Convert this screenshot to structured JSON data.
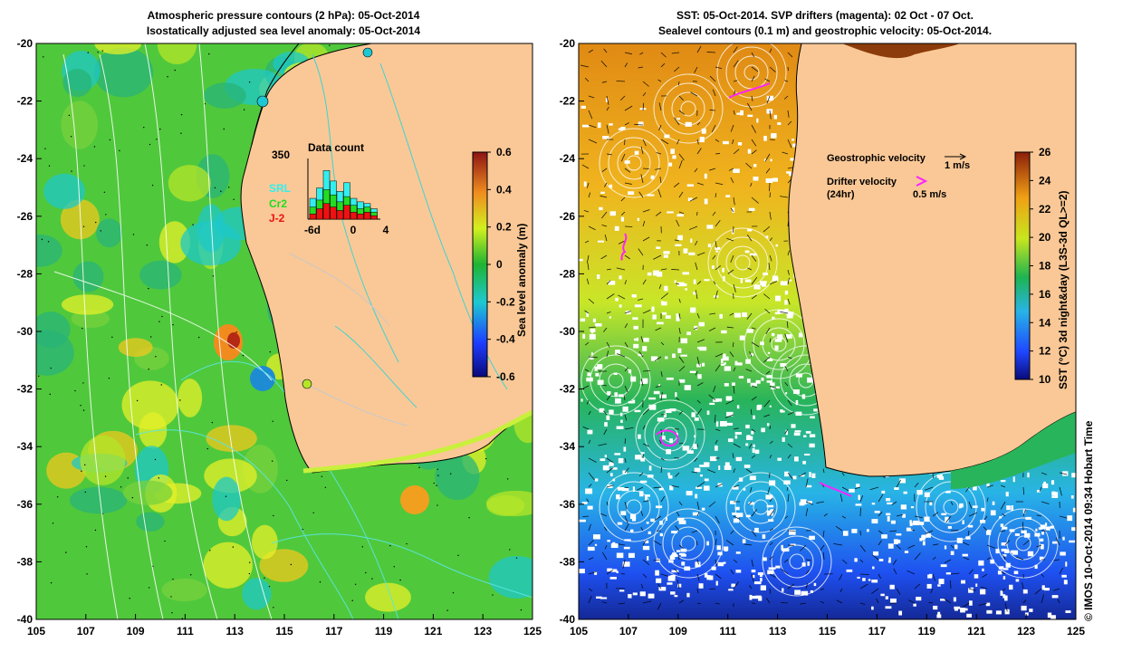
{
  "left_panel": {
    "title_line1": "Atmospheric pressure contours (2 hPa): 05-Oct-2014",
    "title_line2": "Isostatically adjusted sea level anomaly: 05-Oct-2014",
    "x_ticks": [
      "105",
      "107",
      "109",
      "111",
      "113",
      "115",
      "117",
      "119",
      "121",
      "123",
      "125"
    ],
    "y_ticks": [
      "-20",
      "-22",
      "-24",
      "-26",
      "-28",
      "-30",
      "-32",
      "-34",
      "-36",
      "-38",
      "-40"
    ],
    "colorbar": {
      "label": "Sea level anomaly (m)",
      "ticks": [
        "0.6",
        "0.4",
        "0.2",
        "0",
        "-0.2",
        "-0.4",
        "-0.6"
      ],
      "min": -0.6,
      "max": 0.6
    },
    "inset": {
      "title": "Data count",
      "ymax_label": "350",
      "x_ticks": [
        "-6d",
        "0",
        "4"
      ],
      "legend": [
        {
          "label": "SRL",
          "color": "#33eeee"
        },
        {
          "label": "Cr2",
          "color": "#22dd22"
        },
        {
          "label": "J-2",
          "color": "#ee1111"
        }
      ],
      "series": {
        "days": [
          -6,
          -5,
          -4,
          -3,
          -2,
          -1,
          0,
          1,
          2,
          3
        ],
        "SRL": [
          120,
          180,
          280,
          220,
          160,
          210,
          120,
          100,
          90,
          60
        ],
        "Cr2": [
          70,
          110,
          170,
          140,
          100,
          130,
          80,
          60,
          70,
          40
        ],
        "J-2": [
          30,
          60,
          90,
          70,
          50,
          80,
          40,
          30,
          40,
          20
        ]
      }
    }
  },
  "right_panel": {
    "title_line1": "SST: 05-Oct-2014. SVP drifters (magenta): 02 Oct - 07 Oct.",
    "title_line2": "Sealevel contours (0.1 m) and geostrophic velocity: 05-Oct-2014.",
    "x_ticks": [
      "105",
      "107",
      "109",
      "111",
      "113",
      "115",
      "117",
      "119",
      "121",
      "123",
      "125"
    ],
    "y_ticks": [
      "-20",
      "-22",
      "-24",
      "-26",
      "-28",
      "-30",
      "-32",
      "-34",
      "-36",
      "-38",
      "-40"
    ],
    "colorbar": {
      "label": "SST (°C) 3d night&day (L3S-3d QL>=2)",
      "ticks": [
        "26",
        "24",
        "22",
        "20",
        "18",
        "16",
        "14",
        "12",
        "10"
      ],
      "min": 10,
      "max": 26
    },
    "legend": {
      "geostrophic_label": "Geostrophic velocity",
      "geostrophic_scale": "1 m/s",
      "drifter_label": "Drifter velocity",
      "drifter_sub": "(24hr)",
      "drifter_scale": "0.5 m/s"
    }
  },
  "credit": "© IMOS 10-Oct-2014 09:34 Hobart Time",
  "colors": {
    "land": "#fac896",
    "drifter": "#ff22ff",
    "contour": "#ffffff",
    "coast": "#000000"
  }
}
